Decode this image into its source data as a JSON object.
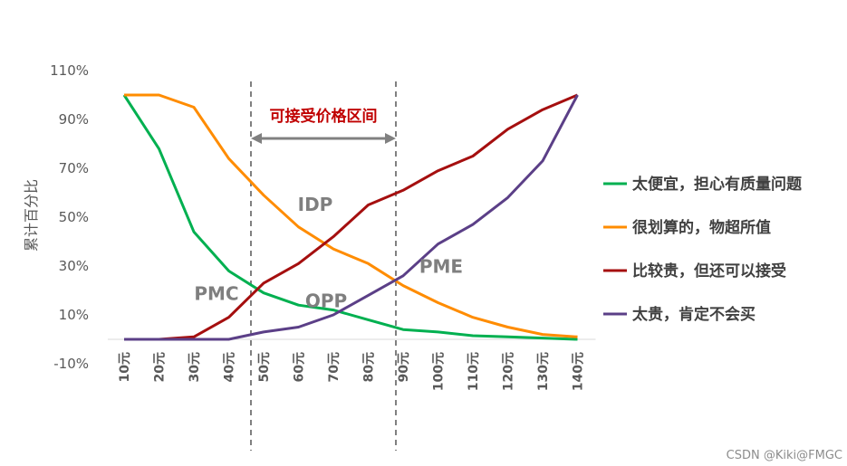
{
  "chart_data": {
    "type": "line",
    "categories": [
      "10元",
      "20元",
      "30元",
      "40元",
      "50元",
      "60元",
      "70元",
      "80元",
      "90元",
      "100元",
      "110元",
      "120元",
      "130元",
      "140元"
    ],
    "series": [
      {
        "name": "太便宜，担心有质量问题",
        "color": "#00b050",
        "values": [
          100,
          78,
          44,
          28,
          19,
          14,
          12,
          8,
          4,
          3,
          1.5,
          1,
          0.5,
          0
        ]
      },
      {
        "name": "很划算的，物超所值",
        "color": "#ff8c00",
        "values": [
          100,
          100,
          95,
          74,
          59,
          46,
          37,
          31,
          22,
          15,
          9,
          5,
          2,
          1
        ]
      },
      {
        "name": "比较贵，但还可以接受",
        "color": "#a50f0f",
        "values": [
          0,
          0,
          1,
          9,
          23,
          31,
          42,
          55,
          61,
          69,
          75,
          86,
          94,
          100
        ]
      },
      {
        "name": "太贵，肯定不会买",
        "color": "#5b3f87",
        "values": [
          0,
          0,
          0,
          0,
          3,
          5,
          10,
          18,
          26,
          39,
          47,
          58,
          73,
          100
        ]
      }
    ],
    "ylabel": "累计百分比",
    "yticks": [
      "-10%",
      "10%",
      "30%",
      "50%",
      "70%",
      "90%",
      "110%"
    ],
    "ylim": [
      -10,
      110
    ],
    "grid": false,
    "legend_position": "right",
    "range_label": "可接受价格区间",
    "annotations": [
      {
        "text": "PMC",
        "x": "50元",
        "y": 19
      },
      {
        "text": "IDP",
        "x": "70元",
        "y": 40
      },
      {
        "text": "OPP",
        "x": "70元",
        "y": 11
      },
      {
        "text": "PME",
        "x": "90元",
        "y": 25
      }
    ],
    "range_bounds": [
      "50元",
      "90元"
    ]
  },
  "watermark": "CSDN @Kiki@FMGC"
}
